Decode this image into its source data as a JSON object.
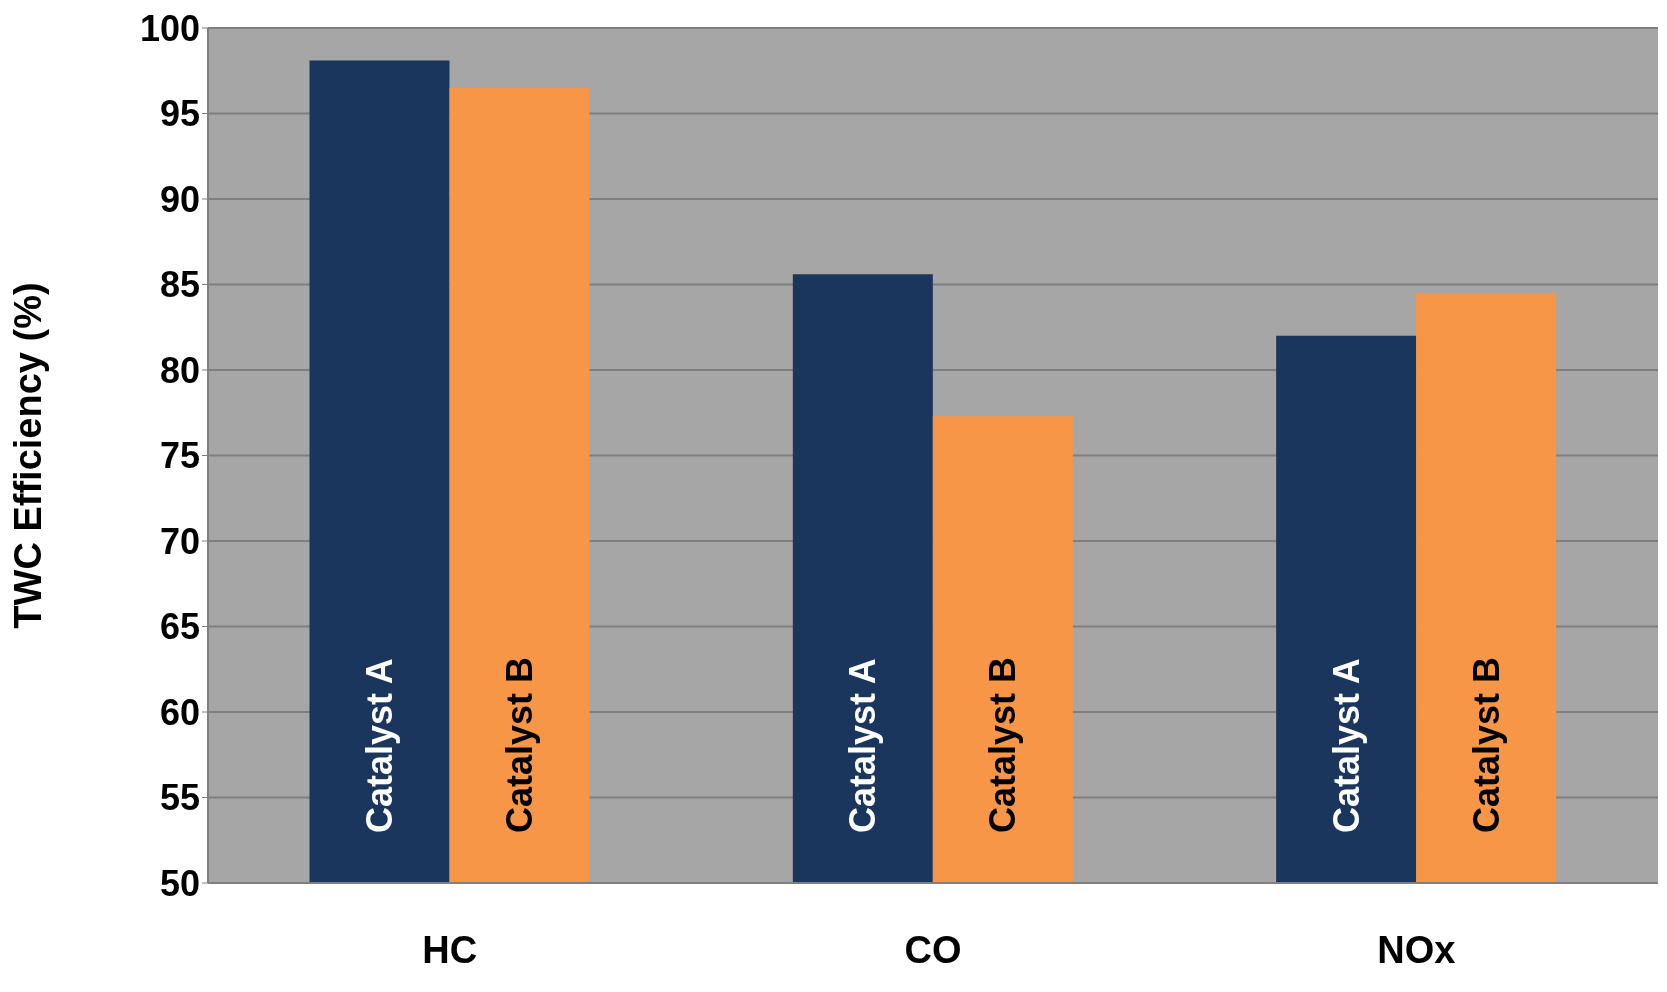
{
  "chart_data": {
    "type": "bar",
    "ylabel": "TWC Efficiency (%)",
    "categories": [
      "HC",
      "CO",
      "NOx"
    ],
    "series": [
      {
        "name": "Catalyst A",
        "color": "#1a365d",
        "values": [
          98.1,
          85.6,
          82.0
        ]
      },
      {
        "name": "Catalyst B",
        "color": "#f79646",
        "values": [
          96.5,
          77.3,
          84.5
        ]
      }
    ],
    "ylim": [
      50,
      100
    ],
    "yticks": [
      50,
      55,
      60,
      65,
      70,
      75,
      80,
      85,
      90,
      95,
      100
    ],
    "grid": "y",
    "legend": false
  }
}
